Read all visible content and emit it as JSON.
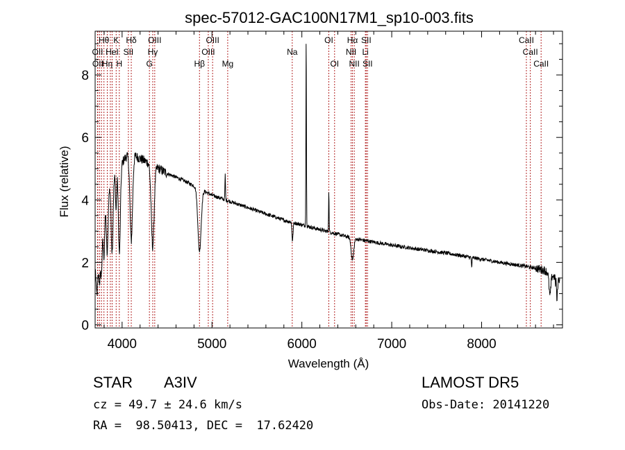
{
  "chart_data": {
    "type": "line",
    "title": "spec-57012-GAC100N17M1_sp10-003.fits",
    "xlabel": "Wavelength (Å)",
    "ylabel": "Flux (relative)",
    "xlim": [
      3700,
      8900
    ],
    "ylim": [
      -0.1,
      9.4
    ],
    "x_ticks": [
      4000,
      5000,
      6000,
      7000,
      8000
    ],
    "y_ticks": [
      0,
      2,
      4,
      6,
      8
    ],
    "grid": false,
    "legend": "none",
    "color": "#000000",
    "line_color": "#b22222",
    "continuum": {
      "x": [
        3700,
        3780,
        3850,
        3950,
        4050,
        4150,
        4250,
        4350,
        4500,
        4700,
        4900,
        5000,
        5200,
        5400,
        5600,
        5800,
        6000,
        6200,
        6400,
        6600,
        6800,
        7000,
        7300,
        7600,
        7900,
        8200,
        8500,
        8700,
        8800,
        8870
      ],
      "y": [
        2.3,
        3.2,
        4.3,
        5.0,
        5.4,
        5.4,
        5.25,
        5.1,
        4.85,
        4.6,
        4.3,
        4.15,
        3.95,
        3.75,
        3.55,
        3.35,
        3.2,
        3.05,
        2.9,
        2.75,
        2.65,
        2.55,
        2.42,
        2.3,
        2.15,
        2.0,
        1.87,
        1.75,
        1.55,
        1.45
      ]
    },
    "features": [
      {
        "x": 3720,
        "depth": 1.5,
        "width": 12
      },
      {
        "x": 3750,
        "depth": 1.4,
        "width": 10
      },
      {
        "x": 3771,
        "depth": 1.3,
        "width": 8
      },
      {
        "x": 3798,
        "depth": 1.3,
        "width": 8
      },
      {
        "x": 3835,
        "depth": 1.8,
        "width": 9
      },
      {
        "x": 3889,
        "depth": 2.2,
        "width": 10
      },
      {
        "x": 3933,
        "depth": 1.2,
        "width": 6
      },
      {
        "x": 3970,
        "depth": 2.8,
        "width": 11
      },
      {
        "x": 4102,
        "depth": 2.7,
        "width": 14
      },
      {
        "x": 4340,
        "depth": 2.6,
        "width": 16
      },
      {
        "x": 4861,
        "depth": 2.0,
        "width": 18
      },
      {
        "x": 5896,
        "depth": 0.6,
        "width": 6
      },
      {
        "x": 6563,
        "depth": 0.7,
        "width": 14
      },
      {
        "x": 7890,
        "depth": 0.3,
        "width": 4
      },
      {
        "x": 8760,
        "depth": 0.7,
        "width": 10
      },
      {
        "x": 8835,
        "depth": 0.8,
        "width": 8
      },
      {
        "x": 5147,
        "depth": -0.8,
        "width": 3
      },
      {
        "x": 6048,
        "depth": -6.2,
        "width": 3
      },
      {
        "x": 6300,
        "depth": -1.3,
        "width": 3
      },
      {
        "x": 8830,
        "depth": -0.6,
        "width": 3
      }
    ],
    "lines": [
      {
        "x": 3727,
        "label": "OII",
        "row": 1
      },
      {
        "x": 3730,
        "label": "OII",
        "row": 2
      },
      {
        "x": 3750,
        "label": "",
        "row": 0
      },
      {
        "x": 3771,
        "label": "",
        "row": 0
      },
      {
        "x": 3798,
        "label": "Hθ",
        "row": 0
      },
      {
        "x": 3835,
        "label": "Hη",
        "row": 2
      },
      {
        "x": 3869,
        "label": "",
        "row": 0
      },
      {
        "x": 3889,
        "label": "HeI",
        "row": 1
      },
      {
        "x": 3934,
        "label": "K",
        "row": 0
      },
      {
        "x": 3969,
        "label": "H",
        "row": 2
      },
      {
        "x": 4070,
        "label": "SII",
        "row": 1
      },
      {
        "x": 4102,
        "label": "Hδ",
        "row": 0
      },
      {
        "x": 4304,
        "label": "G",
        "row": 2
      },
      {
        "x": 4341,
        "label": "Hγ",
        "row": 1
      },
      {
        "x": 4363,
        "label": "OIII",
        "row": 0
      },
      {
        "x": 4861,
        "label": "Hβ",
        "row": 2
      },
      {
        "x": 4959,
        "label": "OIII",
        "row": 1
      },
      {
        "x": 5007,
        "label": "OIII",
        "row": 0
      },
      {
        "x": 5175,
        "label": "Mg",
        "row": 2
      },
      {
        "x": 5893,
        "label": "Na",
        "row": 1
      },
      {
        "x": 6300,
        "label": "OI",
        "row": 0
      },
      {
        "x": 6364,
        "label": "OI",
        "row": 2
      },
      {
        "x": 6548,
        "label": "NII",
        "row": 1
      },
      {
        "x": 6563,
        "label": "Hα",
        "row": 0
      },
      {
        "x": 6583,
        "label": "NII",
        "row": 2
      },
      {
        "x": 6707,
        "label": "Li",
        "row": 1
      },
      {
        "x": 6716,
        "label": "SII",
        "row": 0
      },
      {
        "x": 6731,
        "label": "SII",
        "row": 2
      },
      {
        "x": 8498,
        "label": "CaII",
        "row": 0
      },
      {
        "x": 8542,
        "label": "CaII",
        "row": 1
      },
      {
        "x": 8662,
        "label": "CaII",
        "row": 2
      }
    ]
  },
  "info": {
    "object_class": "STAR",
    "subclass": "A3IV",
    "survey": "LAMOST DR5",
    "redshift": "cz = 49.7 ± 24.6 km/s",
    "obs_date": "Obs-Date: 20141220",
    "coords": "RA =  98.50413, DEC =  17.62420"
  }
}
